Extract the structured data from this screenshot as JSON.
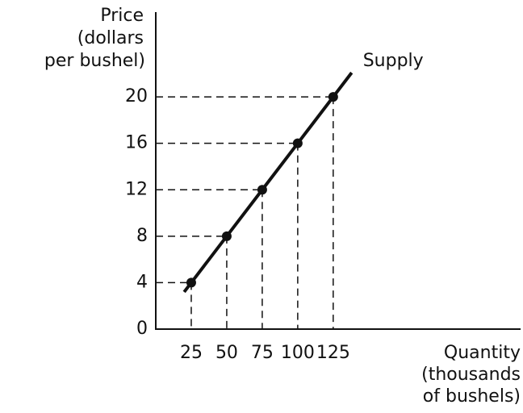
{
  "chart_data": {
    "type": "line",
    "ylabel": [
      "Price",
      "(dollars",
      "per bushel)"
    ],
    "xlabel": [
      "Quantity",
      "(thousands",
      "of bushels)"
    ],
    "x": [
      25,
      50,
      75,
      100,
      125
    ],
    "series": [
      {
        "name": "Supply",
        "color": "#111111",
        "values": [
          4,
          8,
          12,
          16,
          20
        ]
      }
    ],
    "xlim": [
      0,
      257
    ],
    "ylim": [
      0,
      27.3
    ],
    "xticks": [
      25,
      50,
      75,
      100,
      125
    ],
    "yticks": [
      0,
      4,
      8,
      12,
      16,
      20
    ],
    "grid": false
  }
}
